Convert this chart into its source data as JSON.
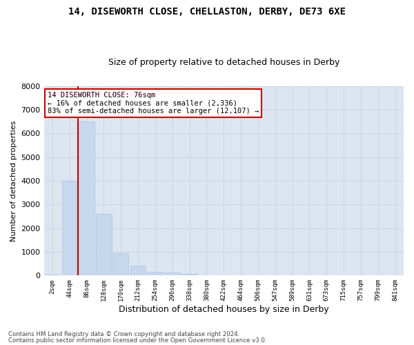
{
  "title": "14, DISEWORTH CLOSE, CHELLASTON, DERBY, DE73 6XE",
  "subtitle": "Size of property relative to detached houses in Derby",
  "xlabel": "Distribution of detached houses by size in Derby",
  "ylabel": "Number of detached properties",
  "footnote1": "Contains HM Land Registry data © Crown copyright and database right 2024.",
  "footnote2": "Contains public sector information licensed under the Open Government Licence v3.0.",
  "categories": [
    "2sqm",
    "44sqm",
    "86sqm",
    "128sqm",
    "170sqm",
    "212sqm",
    "254sqm",
    "296sqm",
    "338sqm",
    "380sqm",
    "422sqm",
    "464sqm",
    "506sqm",
    "547sqm",
    "589sqm",
    "631sqm",
    "673sqm",
    "715sqm",
    "757sqm",
    "799sqm",
    "841sqm"
  ],
  "values": [
    30,
    4000,
    6500,
    2600,
    950,
    420,
    150,
    120,
    80,
    20,
    5,
    2,
    1,
    0,
    0,
    0,
    0,
    0,
    0,
    0,
    0
  ],
  "bar_color": "#c5d8ed",
  "bar_edge_color": "#a8c0dc",
  "grid_color": "#c8d4e4",
  "bg_color": "#dce6f1",
  "red_line_x": 1.5,
  "ylim_max": 8000,
  "yticks": [
    0,
    1000,
    2000,
    3000,
    4000,
    5000,
    6000,
    7000,
    8000
  ],
  "annotation_line1": "14 DISEWORTH CLOSE: 76sqm",
  "annotation_line2": "← 16% of detached houses are smaller (2,336)",
  "annotation_line3": "83% of semi-detached houses are larger (12,107) →",
  "red_line_color": "#cc0000",
  "title_fontsize": 10,
  "subtitle_fontsize": 9
}
